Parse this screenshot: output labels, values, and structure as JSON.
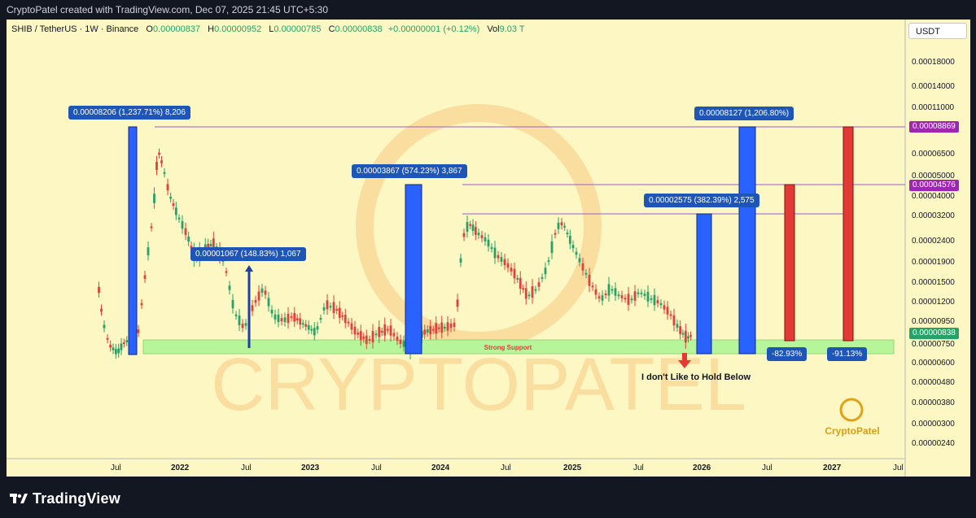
{
  "header": {
    "title": "CryptoPatel created with TradingView.com, Dec 07, 2025 21:45 UTC+5:30"
  },
  "legend": {
    "symbol": "SHIB / TetherUS · 1W · Binance",
    "o_label": "O",
    "o": "0.00000837",
    "h_label": "H",
    "h": "0.00000952",
    "l_label": "L",
    "l": "0.00000785",
    "c_label": "C",
    "c": "0.00000838",
    "change": "+0.00000001 (+0.12%)",
    "vol_label": "Vol",
    "vol": "9.03 T"
  },
  "currency": "USDT",
  "footer": {
    "brand": "TradingView"
  },
  "colors": {
    "background": "#fcf7c3",
    "support": "#b6f59a",
    "up": "#26a269",
    "down": "#e0413a",
    "blue_box": "#2962ff",
    "red_box": "#e53935",
    "level": "#9c27b0"
  },
  "chart_data": {
    "type": "candlestick",
    "symbol": "SHIB / TetherUS",
    "interval": "1W",
    "y_scale": "log",
    "price_ticks": [
      "0.00018000",
      "0.00014000",
      "0.00011000",
      "0.00006500",
      "0.00005000",
      "0.00004000",
      "0.00003200",
      "0.00002400",
      "0.00001900",
      "0.00001500",
      "0.00001200",
      "0.00000950",
      "0.00000750",
      "0.00000600",
      "0.00000480",
      "0.00000380",
      "0.00000300",
      "0.00000240"
    ],
    "time_ticks": [
      "Jul",
      "2022",
      "Jul",
      "2023",
      "Jul",
      "2024",
      "Jul",
      "2025",
      "Jul",
      "2026",
      "Jul",
      "2027",
      "Jul"
    ],
    "last_price": "0.00000838",
    "levels": [
      {
        "label": "0.00008869",
        "price": 8.869e-05
      },
      {
        "label": "0.00004576",
        "price": 4.576e-05
      },
      {
        "label": "",
        "price": 3.3e-05
      }
    ],
    "support_zone": {
      "label": "Strong Support",
      "low": 6.8e-06,
      "high": 7.8e-06
    },
    "measurements": [
      {
        "text": "0.00008206 (1,237.71%) 8,206",
        "dir": "up"
      },
      {
        "text": "0.00001067 (148.83%) 1,067",
        "dir": "up"
      },
      {
        "text": "0.00003867 (574.23%) 3,867",
        "dir": "up"
      },
      {
        "text": "0.00002575 (382.39%) 2,575",
        "dir": "up"
      },
      {
        "text": "0.00008127 (1,206.80%)",
        "dir": "up"
      },
      {
        "text": "-82.93%",
        "dir": "down"
      },
      {
        "text": "-91.13%",
        "dir": "down"
      }
    ],
    "annotations": [
      "I don't Like to Hold Below",
      "CRYPTOPATEL",
      "CryptoPatel"
    ]
  }
}
